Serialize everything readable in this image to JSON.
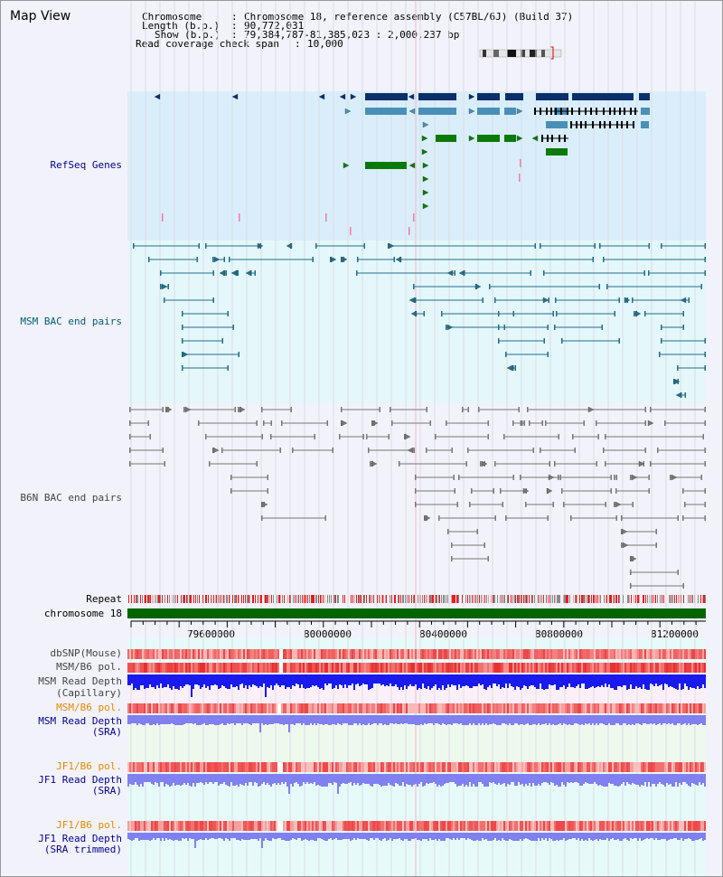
{
  "page": {
    "title": "Map View"
  },
  "header": {
    "chromosome_label": "Chromosome",
    "chromosome_value": "Chromosome 18, reference assembly (C57BL/6J) (Build 37)",
    "length_label": "Length (b.p.)",
    "length_value": "90,772,031",
    "show_label": "Show (b.p.)",
    "show_value": "79,384,787-81,385,023 : 2,000,237 bp",
    "span_label": "Read coverage check span",
    "span_value": "10,000"
  },
  "tracks": {
    "refseq": "RefSeq Genes",
    "msm_bac": "MSM BAC end pairs",
    "b6n_bac": "B6N BAC end pairs",
    "repeat": "Repeat",
    "chromosome": "chromosome 18",
    "dbsnp": "dbSNP(Mouse)",
    "msm_pol1": "MSM/B6 pol.",
    "msm_depth_cap_1": "MSM Read Depth",
    "msm_depth_cap_2": "(Capillary)",
    "msm_pol2": "MSM/B6 pol.",
    "msm_depth_sra_1": "MSM Read Depth",
    "msm_depth_sra_2": "(SRA)",
    "jf1_pol1": "JF1/B6 pol.",
    "jf1_depth_sra_1": "JF1 Read Depth",
    "jf1_depth_sra_2": "(SRA)",
    "jf1_pol2": "JF1/B6 pol.",
    "jf1_depth_trim_1": "JF1 Read Depth",
    "jf1_depth_trim_2": "(SRA trimmed)"
  },
  "axis": {
    "ticks": [
      "79600000",
      "80000000",
      "80400000",
      "80800000",
      "81200000"
    ]
  },
  "colors": {
    "refseq_bg": "#d9eefa",
    "msm_bg": "#e4f7fa",
    "b6n_bg": "#f2f2fa",
    "chrom_bar": "#006400",
    "gene_dark": "#0b2f6b",
    "gene_mid": "#4a8fb8",
    "gene_green": "#0a7a0a",
    "bac_teal": "#1f6f8b",
    "bac_gray": "#777777",
    "snp_red": "#f06060",
    "depth_blue": "#1a1aee",
    "depth_lav": "#8080f0"
  },
  "icons": {
    "ideogram": "chromosome-ideogram-icon"
  }
}
